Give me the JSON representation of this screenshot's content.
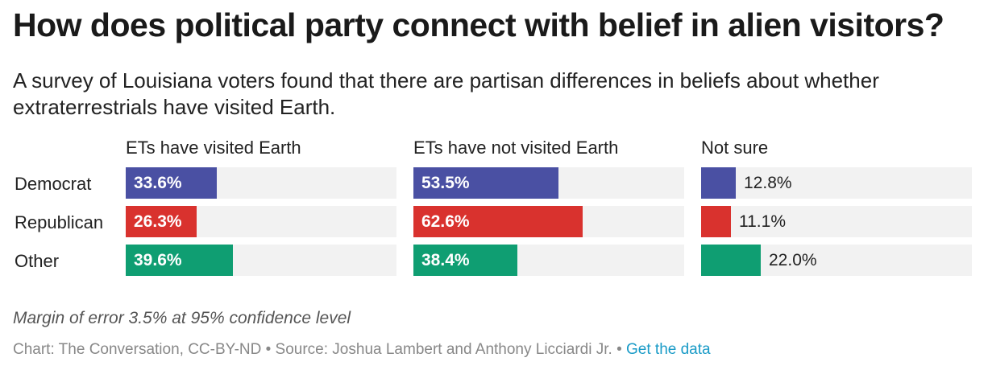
{
  "title": "How does political party connect with belief in alien visitors?",
  "subtitle": "A survey of Louisiana voters found that there are partisan differences in beliefs about whether extraterrestrials have visited Earth.",
  "note": "Margin of error 3.5% at 95% confidence level",
  "source": {
    "text": "Chart: The Conversation, CC-BY-ND • Source: Joshua Lambert and Anthony Licciardi Jr. •",
    "link": "Get the data"
  },
  "colors": {
    "Democrat": "#4a50a3",
    "Republican": "#d9322e",
    "Other": "#0f9e72",
    "track": "#f2f2f2"
  },
  "chart_data": {
    "type": "bar",
    "orientation": "horizontal",
    "title": "How does political party connect with belief in alien visitors?",
    "categories": [
      "Democrat",
      "Republican",
      "Other"
    ],
    "xlim": [
      0,
      100
    ],
    "panels": [
      {
        "name": "ETs have visited Earth",
        "values": [
          33.6,
          26.3,
          39.6
        ],
        "labels": [
          "33.6%",
          "26.3%",
          "39.6%"
        ]
      },
      {
        "name": "ETs have not visited Earth",
        "values": [
          53.5,
          62.6,
          38.4
        ],
        "labels": [
          "53.5%",
          "62.6%",
          "38.4%"
        ]
      },
      {
        "name": "Not sure",
        "values": [
          12.8,
          11.1,
          22.0
        ],
        "labels": [
          "12.8%",
          "11.1%",
          "22.0%"
        ]
      }
    ]
  }
}
